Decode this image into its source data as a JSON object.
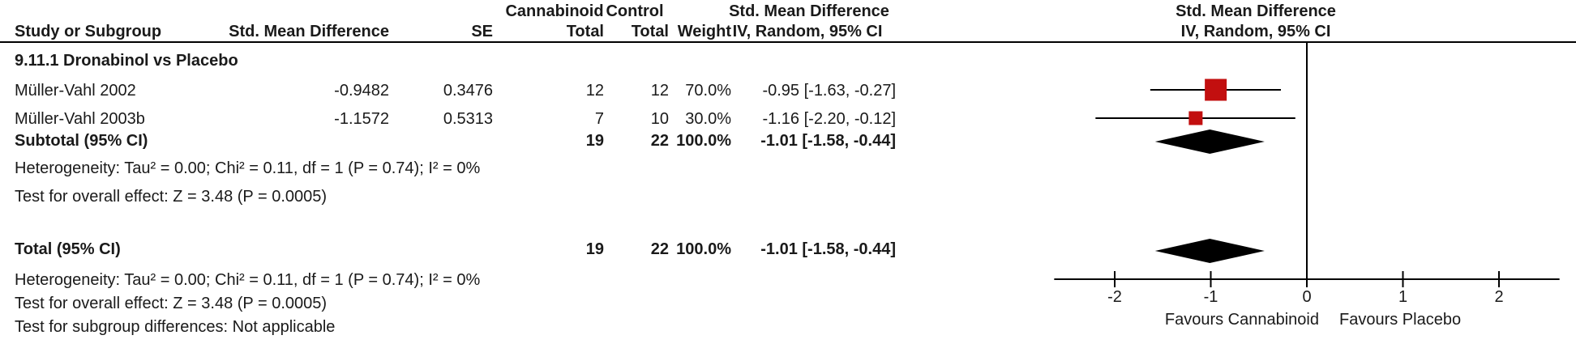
{
  "table": {
    "header": {
      "group_cannabinoid": "Cannabinoid",
      "group_control": "Control",
      "smd_col_title": "Std. Mean Difference",
      "plot_col_title": "Std. Mean Difference",
      "study": "Study or Subgroup",
      "smd": "Std. Mean Difference",
      "se": "SE",
      "cannabinoid_total": "Total",
      "control_total": "Total",
      "weight": "Weight",
      "ci_method_left": "IV, Random, 95% CI",
      "ci_method_right": "IV, Random, 95% CI"
    },
    "subgroup_label": "9.11.1 Dronabinol vs Placebo",
    "studies": [
      {
        "name": "Müller-Vahl 2002",
        "smd": "-0.9482",
        "se": "0.3476",
        "cannabinoid_total": "12",
        "control_total": "12",
        "weight": "70.0%",
        "ci": "-0.95 [-1.63, -0.27]"
      },
      {
        "name": "Müller-Vahl 2003b",
        "smd": "-1.1572",
        "se": "0.5313",
        "cannabinoid_total": "7",
        "control_total": "10",
        "weight": "30.0%",
        "ci": "-1.16 [-2.20, -0.12]"
      }
    ],
    "subtotal": {
      "label": "Subtotal (95% CI)",
      "cannabinoid_total": "19",
      "control_total": "22",
      "weight": "100.0%",
      "ci": "-1.01 [-1.58, -0.44]"
    },
    "subgroup_stats": {
      "heterogeneity": "Heterogeneity: Tau² = 0.00; Chi² = 0.11, df = 1 (P = 0.74); I² = 0%",
      "overall_effect": "Test for overall effect: Z = 3.48 (P = 0.0005)"
    },
    "total": {
      "label": "Total (95% CI)",
      "cannabinoid_total": "19",
      "control_total": "22",
      "weight": "100.0%",
      "ci": "-1.01 [-1.58, -0.44]"
    },
    "total_stats": {
      "heterogeneity": "Heterogeneity: Tau² = 0.00; Chi² = 0.11, df = 1 (P = 0.74); I² = 0%",
      "overall_effect": "Test for overall effect: Z = 3.48 (P = 0.0005)",
      "subgroup_differences": "Test for subgroup differences: Not applicable"
    }
  },
  "chart_data": {
    "type": "forest",
    "effect_measure": "Std. Mean Difference, IV, Random, 95% CI",
    "axis": {
      "ticks": [
        -2,
        -1,
        0,
        1,
        2
      ],
      "tick_labels": [
        "-2",
        "-1",
        "0",
        "1",
        "2"
      ],
      "xlim": [
        -2.63,
        2.63
      ],
      "zero_line": 0
    },
    "favours_left": "Favours Cannabinoid",
    "favours_right": "Favours Placebo",
    "studies": [
      {
        "name": "Müller-Vahl 2002",
        "smd": -0.9482,
        "ci_low": -1.63,
        "ci_high": -0.27,
        "weight": 70.0
      },
      {
        "name": "Müller-Vahl 2003b",
        "smd": -1.1572,
        "ci_low": -2.2,
        "ci_high": -0.12,
        "weight": 30.0
      }
    ],
    "diamonds": [
      {
        "name": "Subtotal",
        "smd": -1.01,
        "ci_low": -1.58,
        "ci_high": -0.44
      },
      {
        "name": "Total",
        "smd": -1.01,
        "ci_low": -1.58,
        "ci_high": -0.44
      }
    ],
    "colors": {
      "marker": "#C20F0F",
      "line": "#000000",
      "diamond": "#000000"
    },
    "layout": {
      "study_row_y": [
        111,
        146
      ],
      "diamond_row_y": [
        175,
        310
      ]
    }
  }
}
